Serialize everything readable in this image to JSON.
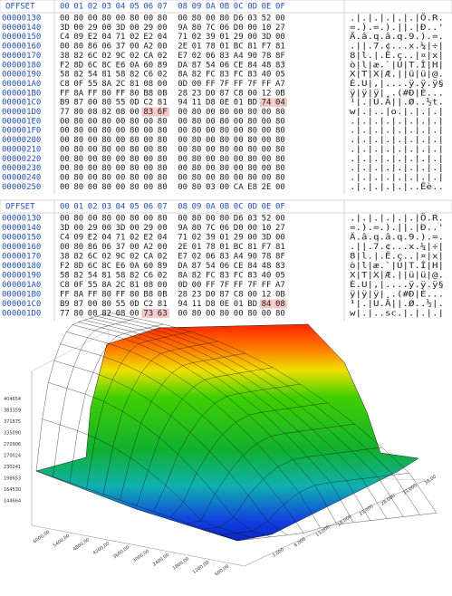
{
  "hex_top": {
    "header": {
      "offset": "OFFSET",
      "columns": [
        "00",
        "01",
        "02",
        "03",
        "04",
        "05",
        "06",
        "07",
        "08",
        "09",
        "0A",
        "0B",
        "0C",
        "0D",
        "0E",
        "0F"
      ]
    },
    "rows": [
      {
        "offset": "00000130",
        "bytes": [
          "00",
          "80",
          "00",
          "80",
          "00",
          "80",
          "00",
          "80",
          "00",
          "80",
          "00",
          "80",
          "D6",
          "03",
          "52",
          "00"
        ],
        "ascii": ".|.|.|.|.|.|Ö.R."
      },
      {
        "offset": "00000140",
        "bytes": [
          "3D",
          "00",
          "29",
          "00",
          "3D",
          "00",
          "29",
          "00",
          "9A",
          "80",
          "7C",
          "06",
          "D0",
          "00",
          "10",
          "27"
        ],
        "ascii": "=.).=.).||.|Ð..'"
      },
      {
        "offset": "00000150",
        "bytes": [
          "C4",
          "09",
          "E2",
          "04",
          "71",
          "02",
          "E2",
          "04",
          "71",
          "02",
          "39",
          "01",
          "29",
          "00",
          "3D",
          "00"
        ],
        "ascii": "Ä.â.q.â.q.9.).=."
      },
      {
        "offset": "00000160",
        "bytes": [
          "00",
          "80",
          "86",
          "06",
          "37",
          "00",
          "A2",
          "00",
          "2E",
          "01",
          "78",
          "01",
          "BC",
          "81",
          "F7",
          "81"
        ],
        "ascii": ".||.7.¢...x.¼|÷|"
      },
      {
        "offset": "00000170",
        "bytes": [
          "38",
          "82",
          "6C",
          "02",
          "9C",
          "02",
          "CA",
          "02",
          "E7",
          "02",
          "06",
          "83",
          "A4",
          "90",
          "78",
          "8F"
        ],
        "ascii": "8|l.|.Ê.ç..|¤|x|"
      },
      {
        "offset": "00000180",
        "bytes": [
          "F2",
          "8D",
          "6C",
          "8C",
          "E6",
          "0A",
          "60",
          "89",
          "DA",
          "87",
          "54",
          "06",
          "CE",
          "84",
          "48",
          "83"
        ],
        "ascii": "ò|l|æ.`|Ú|T.Î|H|"
      },
      {
        "offset": "00000190",
        "bytes": [
          "58",
          "82",
          "54",
          "81",
          "58",
          "82",
          "C6",
          "02",
          "8A",
          "82",
          "FC",
          "83",
          "FC",
          "83",
          "40",
          "05"
        ],
        "ascii": "X|T|X|Æ.||ü|ü|@."
      },
      {
        "offset": "000001A0",
        "bytes": [
          "C8",
          "0F",
          "55",
          "8A",
          "2C",
          "81",
          "08",
          "00",
          "0D",
          "00",
          "FF",
          "7F",
          "FF",
          "7F",
          "FF",
          "A7"
        ],
        "ascii": "È.U|,|....ÿ.ÿ.ÿ§"
      },
      {
        "offset": "000001B0",
        "bytes": [
          "FF",
          "8A",
          "FF",
          "80",
          "FF",
          "80",
          "B8",
          "0B",
          "28",
          "23",
          "D0",
          "87",
          "C8",
          "00",
          "12",
          "0B"
        ],
        "ascii": "ÿ|ÿ|ÿ|¸.(#Ð|È..."
      },
      {
        "offset": "000001C0",
        "bytes": [
          "B9",
          "87",
          "00",
          "80",
          "55",
          "0D",
          "C2",
          "81",
          "94",
          "11",
          "D8",
          "0E",
          "01",
          "BD",
          "74",
          "04"
        ],
        "ascii": "¹|.|U.Â||.Ø..½t.",
        "highlight": [
          14,
          15
        ]
      },
      {
        "offset": "000001D0",
        "bytes": [
          "77",
          "80",
          "08",
          "82",
          "08",
          "00",
          "83",
          "6F",
          "00",
          "80",
          "00",
          "80",
          "00",
          "80",
          "00",
          "80"
        ],
        "ascii": "w|.|..|o.|.|.|.|",
        "highlight": [
          6,
          7
        ]
      },
      {
        "offset": "000001E0",
        "bytes": [
          "00",
          "80",
          "00",
          "80",
          "00",
          "80",
          "00",
          "80",
          "00",
          "80",
          "00",
          "80",
          "00",
          "80",
          "00",
          "80"
        ],
        "ascii": ".|.|.|.|.|.|.|.|"
      },
      {
        "offset": "000001F0",
        "bytes": [
          "00",
          "80",
          "00",
          "80",
          "00",
          "80",
          "00",
          "80",
          "00",
          "80",
          "00",
          "80",
          "00",
          "80",
          "00",
          "80"
        ],
        "ascii": ".|.|.|.|.|.|.|.|"
      },
      {
        "offset": "00000200",
        "bytes": [
          "00",
          "80",
          "00",
          "80",
          "00",
          "80",
          "00",
          "80",
          "00",
          "80",
          "00",
          "80",
          "00",
          "80",
          "00",
          "80"
        ],
        "ascii": ".|.|.|.|.|.|.|.|"
      },
      {
        "offset": "00000210",
        "bytes": [
          "00",
          "80",
          "00",
          "80",
          "00",
          "80",
          "00",
          "80",
          "00",
          "80",
          "00",
          "80",
          "00",
          "80",
          "00",
          "80"
        ],
        "ascii": ".|.|.|.|.|.|.|.|"
      },
      {
        "offset": "00000220",
        "bytes": [
          "00",
          "80",
          "00",
          "80",
          "00",
          "80",
          "00",
          "80",
          "00",
          "80",
          "00",
          "80",
          "00",
          "80",
          "00",
          "80"
        ],
        "ascii": ".|.|.|.|.|.|.|.|"
      },
      {
        "offset": "00000230",
        "bytes": [
          "00",
          "80",
          "00",
          "80",
          "00",
          "80",
          "00",
          "80",
          "00",
          "80",
          "00",
          "80",
          "00",
          "80",
          "00",
          "80"
        ],
        "ascii": ".|.|.|.|.|.|.|.|"
      },
      {
        "offset": "00000240",
        "bytes": [
          "00",
          "80",
          "00",
          "80",
          "00",
          "80",
          "00",
          "80",
          "00",
          "80",
          "00",
          "80",
          "00",
          "80",
          "00",
          "80"
        ],
        "ascii": ".|.|.|.|.|.|.|.|"
      },
      {
        "offset": "00000250",
        "bytes": [
          "00",
          "80",
          "00",
          "80",
          "00",
          "80",
          "00",
          "80",
          "00",
          "80",
          "03",
          "00",
          "CA",
          "E8",
          "2E",
          "00"
        ],
        "ascii": ".|.|.|.|.|..Êè.."
      }
    ]
  },
  "hex_bottom": {
    "header": {
      "offset": "OFFSET",
      "columns": [
        "00",
        "01",
        "02",
        "03",
        "04",
        "05",
        "06",
        "07",
        "08",
        "09",
        "0A",
        "0B",
        "0C",
        "0D",
        "0E",
        "0F"
      ]
    },
    "rows": [
      {
        "offset": "00000130",
        "bytes": [
          "00",
          "80",
          "00",
          "80",
          "00",
          "80",
          "00",
          "80",
          "00",
          "80",
          "00",
          "80",
          "D6",
          "03",
          "52",
          "00"
        ],
        "ascii": ".|.|.|.|.|.|Ö.R."
      },
      {
        "offset": "00000140",
        "bytes": [
          "3D",
          "00",
          "29",
          "00",
          "3D",
          "00",
          "29",
          "00",
          "9A",
          "80",
          "7C",
          "06",
          "D0",
          "00",
          "10",
          "27"
        ],
        "ascii": "=.).=.).||.|Ð..'"
      },
      {
        "offset": "00000150",
        "bytes": [
          "C4",
          "09",
          "E2",
          "04",
          "71",
          "02",
          "E2",
          "04",
          "71",
          "02",
          "39",
          "01",
          "29",
          "00",
          "3D",
          "00"
        ],
        "ascii": "Ä.â.q.â.q.9.).=."
      },
      {
        "offset": "00000160",
        "bytes": [
          "00",
          "80",
          "86",
          "06",
          "37",
          "00",
          "A2",
          "00",
          "2E",
          "01",
          "78",
          "01",
          "BC",
          "81",
          "F7",
          "81"
        ],
        "ascii": ".||.7.¢...x.¼|÷|"
      },
      {
        "offset": "00000170",
        "bytes": [
          "38",
          "82",
          "6C",
          "02",
          "9C",
          "02",
          "CA",
          "02",
          "E7",
          "02",
          "06",
          "83",
          "A4",
          "90",
          "78",
          "8F"
        ],
        "ascii": "8|l.|.Ê.ç..|¤|x|"
      },
      {
        "offset": "00000180",
        "bytes": [
          "F2",
          "8D",
          "6C",
          "8C",
          "E6",
          "0A",
          "60",
          "89",
          "DA",
          "87",
          "54",
          "06",
          "CE",
          "84",
          "48",
          "83"
        ],
        "ascii": "ò|l|æ.`|Ú|T.Î|H|"
      },
      {
        "offset": "00000190",
        "bytes": [
          "58",
          "82",
          "54",
          "81",
          "58",
          "82",
          "C6",
          "02",
          "8A",
          "82",
          "FC",
          "83",
          "FC",
          "83",
          "40",
          "05"
        ],
        "ascii": "X|T|X|Æ.||ü|ü|@."
      },
      {
        "offset": "000001A0",
        "bytes": [
          "C8",
          "0F",
          "55",
          "8A",
          "2C",
          "81",
          "08",
          "00",
          "0D",
          "00",
          "FF",
          "7F",
          "FF",
          "7F",
          "FF",
          "A7"
        ],
        "ascii": "È.U|,|....ÿ.ÿ.ÿ§"
      },
      {
        "offset": "000001B0",
        "bytes": [
          "FF",
          "8A",
          "FF",
          "80",
          "FF",
          "80",
          "B8",
          "0B",
          "28",
          "23",
          "D0",
          "87",
          "C8",
          "00",
          "12",
          "0B"
        ],
        "ascii": "ÿ|ÿ|ÿ|¸.(#Ð|È..."
      },
      {
        "offset": "000001C0",
        "bytes": [
          "B9",
          "87",
          "00",
          "80",
          "55",
          "0D",
          "C2",
          "81",
          "94",
          "11",
          "D8",
          "0E",
          "01",
          "BD",
          "84",
          "08"
        ],
        "ascii": "¹|.|U.Â||.Ø..½|.",
        "highlight": [
          14,
          15
        ]
      },
      {
        "offset": "000001D0",
        "bytes": [
          "77",
          "80",
          "08",
          "82",
          "08",
          "00",
          "73",
          "63",
          "00",
          "80",
          "00",
          "80",
          "00",
          "80",
          "00",
          "80"
        ],
        "ascii": "w|.|..sc.|.|.|.|",
        "highlight": [
          6,
          7
        ]
      }
    ]
  },
  "surface_plot": {
    "z_ticks": [
      "404654",
      "383359",
      "371875",
      "335090",
      "270906",
      "270024",
      "230241",
      "198653",
      "164530",
      "144664"
    ],
    "x_ticks": [
      "6000,00",
      "5400,00",
      "4800,00",
      "4200,00",
      "3600,00",
      "3000,00",
      "2400,00",
      "1800,00",
      "1200,00",
      "600,00"
    ],
    "y_ticks": [
      "38,00",
      "33,000",
      "28,000",
      "23,000",
      "18,000",
      "13,000",
      "8,000",
      "3,000"
    ]
  }
}
